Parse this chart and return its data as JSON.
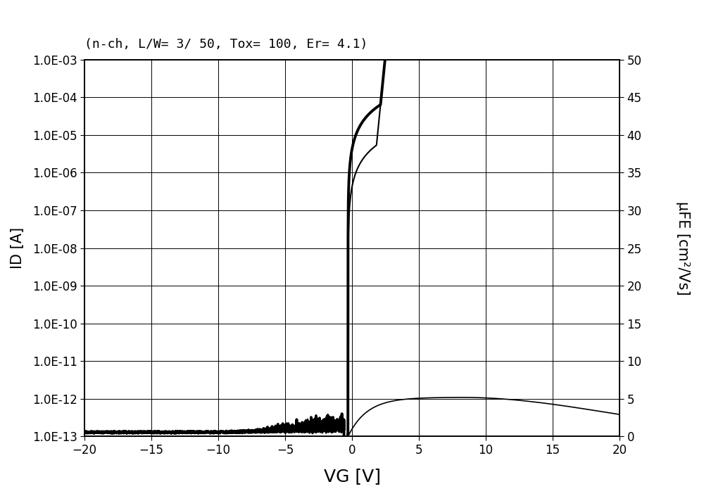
{
  "title": "(n-ch, L/W= 3/ 50, Tox= 100, Er= 4.1)",
  "xlabel": "VG [V]",
  "ylabel_left": "ID [A]",
  "ylabel_right": "μFE [cm²/Vs]",
  "vg_min": -20,
  "vg_max": 20,
  "id_log_min": -13,
  "id_log_max": -3,
  "mufe_min": 0,
  "mufe_max": 50,
  "vth": -0.3,
  "noise_floor": 1.3e-13,
  "id_on_high": 0.001,
  "id_on_low": 0.0001,
  "mufe_peak": 5.2,
  "mufe_peak_vg": 8.0,
  "S_inv": 0.28,
  "background_color": "#ffffff",
  "line_color_id_thick": "#000000",
  "line_color_id_thin": "#000000",
  "line_color_mufe": "#000000",
  "grid_color": "#000000",
  "title_fontsize": 13,
  "label_fontsize": 15,
  "tick_fontsize": 12,
  "lw_thick": 2.8,
  "lw_thin": 1.5,
  "lw_mufe": 1.2
}
